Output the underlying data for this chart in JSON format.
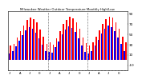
{
  "title": "Milwaukee Weather Outdoor Temperature Monthly High/Low",
  "highs": [
    28,
    32,
    44,
    57,
    68,
    78,
    83,
    80,
    73,
    60,
    46,
    32,
    35,
    30,
    42,
    56,
    70,
    78,
    84,
    82,
    74,
    61,
    44,
    33,
    29,
    35,
    46,
    58,
    71,
    80,
    85,
    83,
    74,
    62,
    45,
    34
  ],
  "lows": [
    13,
    17,
    27,
    38,
    48,
    58,
    64,
    62,
    54,
    43,
    30,
    17,
    16,
    14,
    25,
    36,
    50,
    60,
    66,
    63,
    55,
    42,
    28,
    16,
    12,
    18,
    28,
    39,
    52,
    61,
    67,
    65,
    56,
    44,
    31,
    18
  ],
  "year_dividers": [
    11.5,
    23.5
  ],
  "high_color": "#ff0000",
  "low_color": "#0000ff",
  "bg_color": "#ffffff",
  "plot_bg": "#ffffff",
  "yticks": [
    90,
    70,
    50,
    30,
    10,
    -10
  ],
  "ylim": [
    -20,
    95
  ],
  "bar_width": 0.38,
  "xlim": [
    -0.6,
    35.6
  ]
}
